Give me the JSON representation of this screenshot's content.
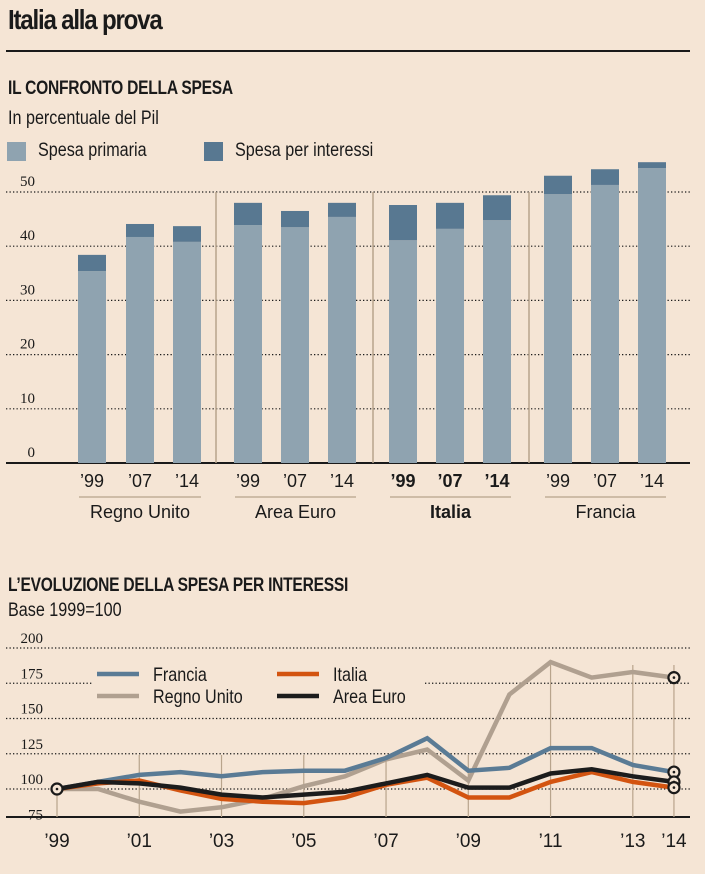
{
  "page": {
    "title": "Italia alla prova"
  },
  "colors": {
    "background": "#f5e5d5",
    "primary_spending": "#8fa3b0",
    "interest_spending": "#587891",
    "divider": "#b8a48c",
    "francia": "#5a7b95",
    "italia": "#d35410",
    "regno_unito": "#b0a090",
    "area_euro": "#1c1c1c"
  },
  "chart_data": [
    {
      "type": "bar",
      "stacked": true,
      "title": "IL CONFRONTO DELLA SPESA",
      "subtitle": "In percentuale del Pil",
      "xlabel": "",
      "ylabel": "",
      "ylim": [
        0,
        55
      ],
      "yticks": [
        0,
        10,
        20,
        30,
        40,
        50
      ],
      "grid": true,
      "legend_position": "top-left",
      "groups": [
        {
          "name": "Regno Unito",
          "bold": false,
          "categories": [
            "’99",
            "’07",
            "’14"
          ]
        },
        {
          "name": "Area Euro",
          "bold": false,
          "categories": [
            "’99",
            "’07",
            "’14"
          ]
        },
        {
          "name": "Italia",
          "bold": true,
          "categories": [
            "’99",
            "’07",
            "’14"
          ]
        },
        {
          "name": "Francia",
          "bold": false,
          "categories": [
            "’99",
            "’07",
            "’14"
          ]
        }
      ],
      "series": [
        {
          "name": "Spesa primaria",
          "values": [
            35.4,
            41.7,
            40.8,
            43.9,
            43.5,
            45.4,
            41.1,
            43.2,
            44.8,
            49.6,
            51.3,
            54.4
          ]
        },
        {
          "name": "Spesa per interessi",
          "values": [
            3.0,
            2.4,
            2.9,
            4.1,
            3.0,
            2.6,
            6.5,
            4.8,
            4.6,
            3.4,
            2.9,
            1.1
          ]
        }
      ]
    },
    {
      "type": "line",
      "title": "L’EVOLUZIONE DELLA SPESA PER INTERESSI",
      "subtitle": "Base 1999=100",
      "xlabel": "",
      "ylabel": "",
      "ylim": [
        80,
        200
      ],
      "yticks": [
        75,
        100,
        125,
        150,
        175,
        200
      ],
      "grid": true,
      "legend_position": "top-left",
      "x": [
        1999,
        2000,
        2001,
        2002,
        2003,
        2004,
        2005,
        2006,
        2007,
        2008,
        2009,
        2010,
        2011,
        2012,
        2013,
        2014
      ],
      "xticks": [
        {
          "year": 1999,
          "label": "’99"
        },
        {
          "year": 2001,
          "label": "’01"
        },
        {
          "year": 2003,
          "label": "’03"
        },
        {
          "year": 2005,
          "label": "’05"
        },
        {
          "year": 2007,
          "label": "’07"
        },
        {
          "year": 2009,
          "label": "’09"
        },
        {
          "year": 2011,
          "label": "’11"
        },
        {
          "year": 2013,
          "label": "’13"
        },
        {
          "year": 2014,
          "label": "’14"
        }
      ],
      "series": [
        {
          "name": "Francia",
          "key": "francia",
          "values": [
            100,
            105,
            110,
            112,
            109,
            112,
            113,
            113,
            122,
            136,
            113,
            115,
            129,
            129,
            117,
            112
          ]
        },
        {
          "name": "Italia",
          "key": "italia",
          "values": [
            100,
            104,
            106,
            99,
            93,
            91,
            90,
            94,
            103,
            108,
            94,
            94,
            105,
            112,
            105,
            101
          ]
        },
        {
          "name": "Regno Unito",
          "key": "regno_unito",
          "values": [
            100,
            100,
            91,
            84,
            87,
            93,
            102,
            109,
            121,
            128,
            106,
            167,
            190,
            179,
            183,
            179
          ]
        },
        {
          "name": "Area Euro",
          "key": "area_euro",
          "values": [
            100,
            105,
            104,
            101,
            96,
            94,
            96,
            98,
            104,
            110,
            101,
            101,
            111,
            114,
            109,
            105
          ]
        }
      ],
      "markers": [
        "start-point",
        "end-points"
      ]
    }
  ]
}
